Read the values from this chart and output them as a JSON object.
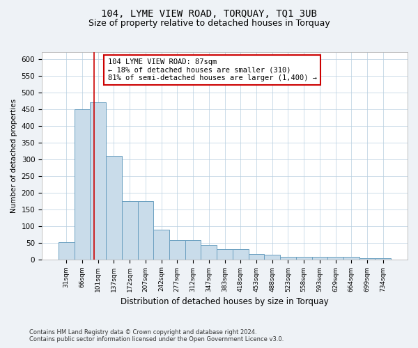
{
  "title": "104, LYME VIEW ROAD, TORQUAY, TQ1 3UB",
  "subtitle": "Size of property relative to detached houses in Torquay",
  "xlabel": "Distribution of detached houses by size in Torquay",
  "ylabel": "Number of detached properties",
  "categories": [
    "31sqm",
    "66sqm",
    "101sqm",
    "137sqm",
    "172sqm",
    "207sqm",
    "242sqm",
    "277sqm",
    "312sqm",
    "347sqm",
    "383sqm",
    "418sqm",
    "453sqm",
    "488sqm",
    "523sqm",
    "558sqm",
    "593sqm",
    "629sqm",
    "664sqm",
    "699sqm",
    "734sqm"
  ],
  "values": [
    52,
    450,
    470,
    310,
    175,
    175,
    88,
    57,
    57,
    43,
    30,
    30,
    15,
    13,
    8,
    8,
    8,
    7,
    7,
    4,
    4
  ],
  "bar_color": "#c9dcea",
  "bar_edge_color": "#6a9fc0",
  "property_line_x": 1.75,
  "annotation_line1": "104 LYME VIEW ROAD: 87sqm",
  "annotation_line2": "← 18% of detached houses are smaller (310)",
  "annotation_line3": "81% of semi-detached houses are larger (1,400) →",
  "annotation_box_color": "#ffffff",
  "annotation_box_edge_color": "#cc0000",
  "vline_color": "#cc0000",
  "ylim": [
    0,
    620
  ],
  "yticks": [
    0,
    50,
    100,
    150,
    200,
    250,
    300,
    350,
    400,
    450,
    500,
    550,
    600
  ],
  "footer_line1": "Contains HM Land Registry data © Crown copyright and database right 2024.",
  "footer_line2": "Contains public sector information licensed under the Open Government Licence v3.0.",
  "bg_color": "#eef2f6",
  "plot_bg_color": "#ffffff",
  "title_fontsize": 10,
  "subtitle_fontsize": 9,
  "grid_color": "#b8cfe0"
}
